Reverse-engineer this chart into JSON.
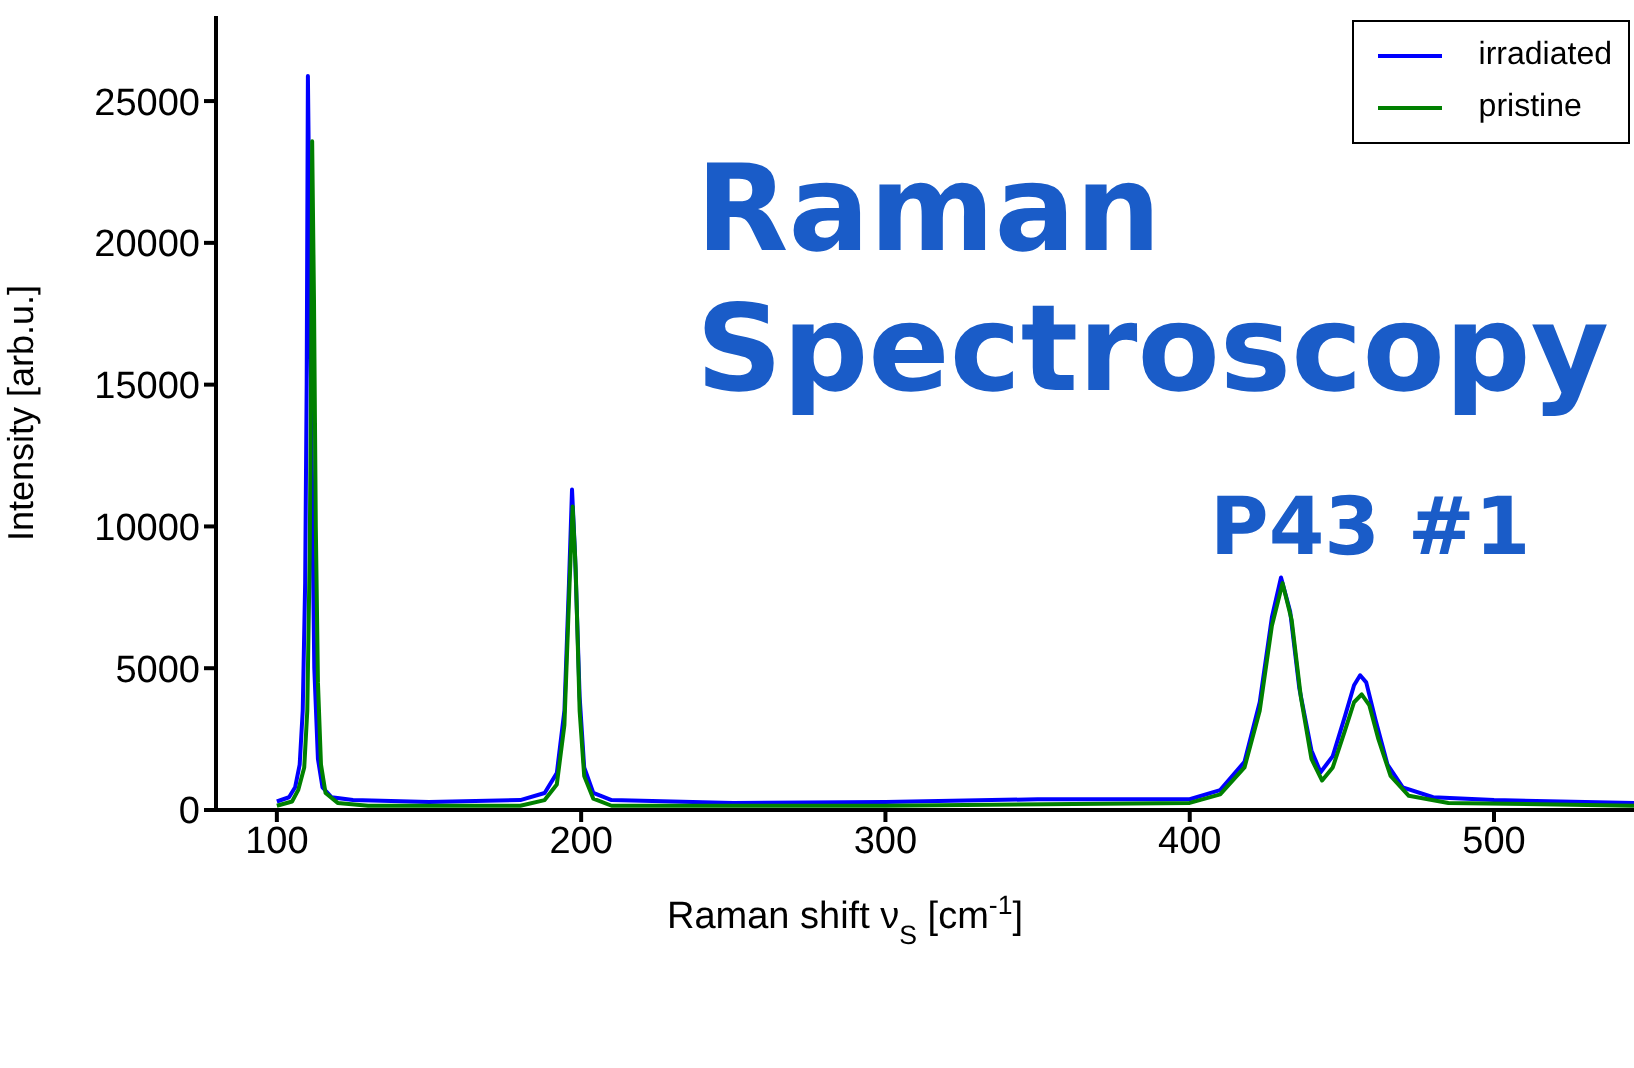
{
  "chart_data": {
    "type": "line",
    "xlabel": "Raman shift ν$_{S}$ [cm$^{-1}$]",
    "ylabel": "Intensity [arb.u.]",
    "annotations": [
      "Raman Spectroscopy",
      "P43 #1"
    ],
    "xlim": [
      80,
      546
    ],
    "xticks": [
      100,
      200,
      300,
      400,
      500
    ],
    "ylim": [
      0,
      28000
    ],
    "yticks": [
      0,
      5000,
      10000,
      15000,
      20000,
      25000
    ],
    "grid": false,
    "legend": "top right",
    "marker": "none",
    "line_style": "solid",
    "series": [
      {
        "name": "irradiated",
        "color": "#0000ff",
        "x": [
          100,
          104,
          106,
          107.5,
          108.5,
          109.3,
          109.8,
          110.2,
          110.8,
          111.5,
          112.3,
          113.5,
          115,
          118,
          125,
          150,
          180,
          188,
          192,
          194.5,
          196,
          197,
          198,
          199.5,
          201,
          204,
          210,
          250,
          300,
          350,
          400,
          410,
          418,
          423,
          427,
          430,
          433,
          436,
          440,
          443,
          447,
          451,
          454,
          456,
          458,
          461,
          465,
          470,
          480,
          500,
          546
        ],
        "values": [
          300,
          450,
          800,
          1600,
          3500,
          8000,
          15000,
          25880,
          20000,
          12000,
          5000,
          1800,
          800,
          450,
          350,
          280,
          350,
          600,
          1300,
          3500,
          8000,
          11300,
          9000,
          4000,
          1500,
          600,
          350,
          250,
          280,
          380,
          380,
          700,
          1700,
          3800,
          6800,
          8200,
          7000,
          4300,
          2100,
          1330,
          1900,
          3300,
          4400,
          4750,
          4500,
          3200,
          1600,
          800,
          450,
          350,
          250
        ]
      },
      {
        "name": "pristine",
        "color": "#008000",
        "x": [
          100,
          105,
          107,
          109,
          110,
          110.8,
          111.3,
          111.6,
          112.2,
          112.8,
          113.5,
          114.5,
          116,
          120,
          130,
          180,
          188,
          192,
          194.5,
          196.2,
          197.2,
          198.2,
          199.5,
          201,
          204,
          210,
          300,
          400,
          410,
          418,
          423,
          427,
          430.5,
          433.5,
          436.5,
          440,
          443.5,
          447,
          451,
          454,
          456.5,
          459,
          462,
          466,
          472,
          485,
          546
        ],
        "values": [
          150,
          300,
          700,
          1500,
          3500,
          9000,
          16000,
          23580,
          18000,
          10000,
          4500,
          1600,
          600,
          250,
          150,
          150,
          350,
          900,
          3000,
          8000,
          10700,
          8500,
          3500,
          1200,
          400,
          150,
          150,
          250,
          550,
          1500,
          3500,
          6500,
          8000,
          6700,
          4000,
          1800,
          1040,
          1500,
          2800,
          3800,
          4080,
          3700,
          2500,
          1200,
          500,
          250,
          150
        ]
      }
    ]
  }
}
